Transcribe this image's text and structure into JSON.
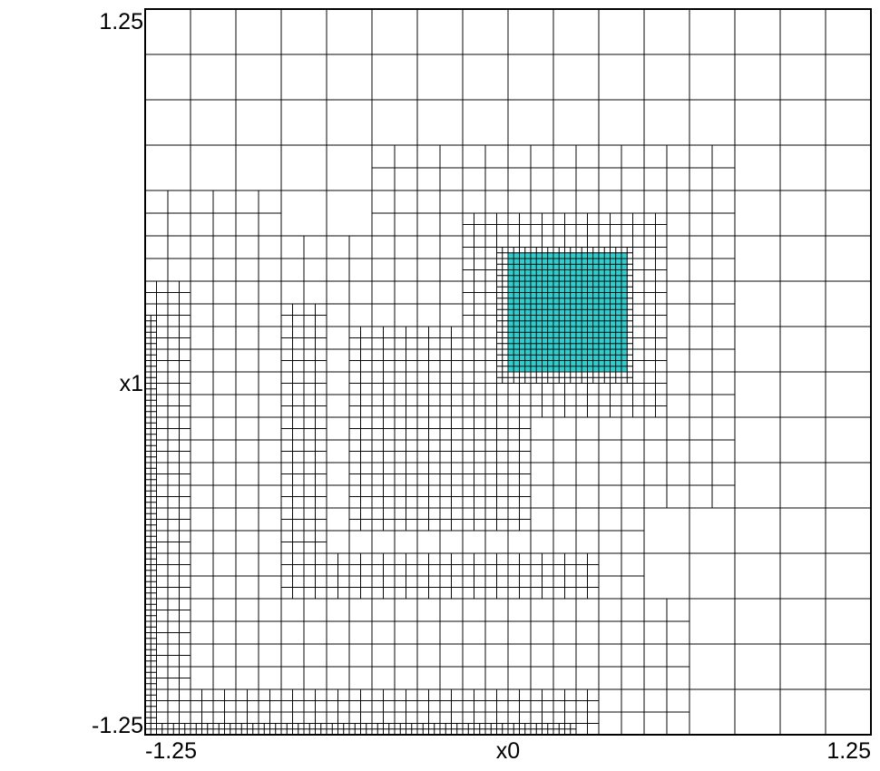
{
  "chart_data": {
    "type": "mesh",
    "title": "",
    "xlabel": "x0",
    "ylabel": "x1",
    "xlim": [
      -1.25,
      1.25
    ],
    "ylim": [
      -1.25,
      1.25
    ],
    "x_tick_labels": [
      "-1.25",
      "1.25"
    ],
    "y_tick_labels": [
      "-1.25",
      "1.25"
    ],
    "refinement": {
      "base_level": 2,
      "regions": [
        {
          "name": "highlighted-block",
          "x": [
            -0.0125,
            0.4125
          ],
          "y": [
            -0.0125,
            0.4125
          ],
          "level": 7
        },
        {
          "name": "left-boundary",
          "x": [
            -1.25,
            -1.2125
          ],
          "y": [
            -1.25,
            0.175
          ],
          "level": 7
        },
        {
          "name": "bottom-boundary",
          "x": [
            -1.25,
            0.2
          ],
          "y": [
            -1.25,
            -1.225
          ],
          "level": 7
        },
        {
          "name": "outer-loop-left",
          "x": [
            -0.75,
            -0.7
          ],
          "y": [
            -0.725,
            0.2
          ],
          "level": 6
        },
        {
          "name": "outer-loop-bottom",
          "x": [
            -0.75,
            0.3
          ],
          "y": [
            -0.725,
            -0.7
          ],
          "level": 6
        },
        {
          "name": "inner-loop-left",
          "x": [
            -0.5,
            -0.45
          ],
          "y": [
            -0.5,
            0.15
          ],
          "level": 6
        },
        {
          "name": "inner-loop-bottom",
          "x": [
            -0.5,
            0.05
          ],
          "y": [
            -0.5,
            -0.45
          ],
          "level": 6
        },
        {
          "name": "central-block",
          "x": [
            -0.35,
            -0.0
          ],
          "y": [
            -0.325,
            0.125
          ],
          "level": 6
        },
        {
          "name": "central-column",
          "x": [
            -0.4,
            -0.325
          ],
          "y": [
            -0.35,
            0.15
          ],
          "level": 6
        }
      ]
    },
    "highlight_color": "#33cccc",
    "line_color": "#000000",
    "background": "#ffffff"
  }
}
